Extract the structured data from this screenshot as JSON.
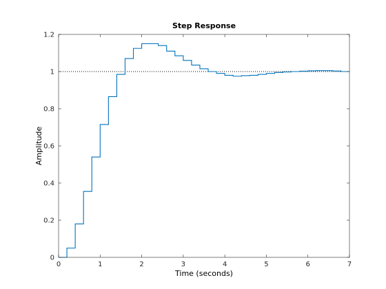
{
  "chart_data": {
    "type": "line",
    "style": "stairs",
    "title": "Step Response",
    "xlabel": "Time (seconds)",
    "ylabel": "Amplitude",
    "xlim": [
      0,
      7
    ],
    "ylim": [
      0,
      1.2
    ],
    "xticks": [
      0,
      1,
      2,
      3,
      4,
      5,
      6,
      7
    ],
    "xtick_labels": [
      "0",
      "1",
      "2",
      "3",
      "4",
      "5",
      "6",
      "7"
    ],
    "yticks": [
      0,
      0.2,
      0.4,
      0.6,
      0.8,
      1,
      1.2
    ],
    "ytick_labels": [
      "0",
      "0.2",
      "0.4",
      "0.6",
      "0.8",
      "1",
      "1.2"
    ],
    "grid": false,
    "series": [
      {
        "color": "#0072bd",
        "x": [
          0,
          0.2,
          0.4,
          0.6,
          0.8,
          1.0,
          1.2,
          1.4,
          1.6,
          1.8,
          2.0,
          2.2,
          2.4,
          2.6,
          2.8,
          3.0,
          3.2,
          3.4,
          3.6,
          3.8,
          4.0,
          4.2,
          4.4,
          4.6,
          4.8,
          5.0,
          5.2,
          5.4,
          5.6,
          5.8,
          6.0,
          6.2,
          6.4,
          6.6,
          6.8,
          7.0
        ],
        "y": [
          0,
          0.05,
          0.18,
          0.355,
          0.54,
          0.715,
          0.865,
          0.985,
          1.07,
          1.125,
          1.15,
          1.15,
          1.14,
          1.11,
          1.085,
          1.06,
          1.035,
          1.015,
          1.0,
          0.99,
          0.98,
          0.975,
          0.978,
          0.98,
          0.985,
          0.99,
          0.995,
          0.998,
          1.0,
          1.002,
          1.004,
          1.005,
          1.005,
          1.003,
          1.0,
          1.0
        ]
      }
    ],
    "reference_line": {
      "y": 1,
      "style": "dotted",
      "color": "#000000"
    }
  }
}
